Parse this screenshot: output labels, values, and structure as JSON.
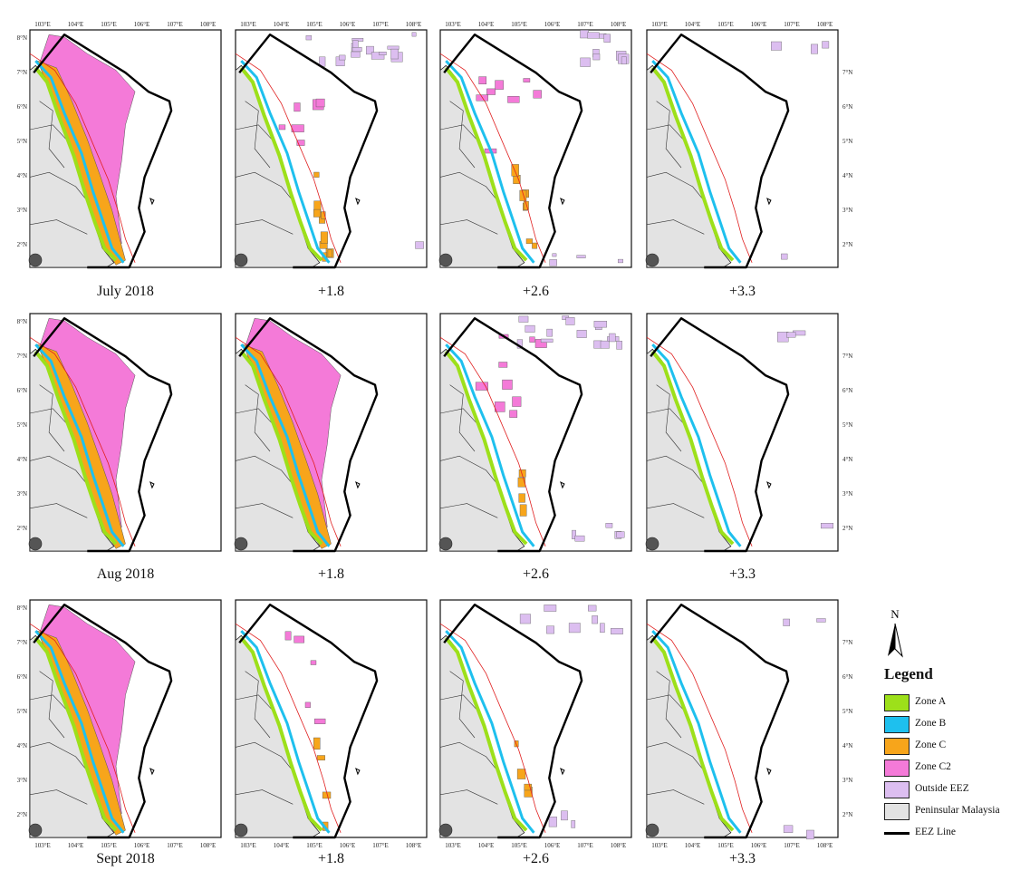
{
  "colors": {
    "zoneA": "#9de01a",
    "zoneB": "#1ec0ee",
    "zoneC": "#f7a51b",
    "zoneC2": "#f47ad8",
    "outside": "#dcbef0",
    "land": "#e3e3e3",
    "eez": "#000000",
    "redline": "#e02020",
    "blueline": "#3aa3e0"
  },
  "axis": {
    "lon_ticks": [
      "103°E",
      "104°E",
      "105°E",
      "106°E",
      "107°E",
      "108°E"
    ],
    "lat_ticks": [
      "2°N",
      "3°N",
      "4°N",
      "5°N",
      "6°N",
      "7°N",
      "8°N"
    ]
  },
  "panels": [
    {
      "caption": "July 2018",
      "coverage": {
        "C2": 1.0,
        "C": 1.0,
        "outside": 0.0
      }
    },
    {
      "caption": "+1.8",
      "coverage": {
        "C2": 0.05,
        "C": 0.25,
        "outside": 0.5
      }
    },
    {
      "caption": "+2.6",
      "coverage": {
        "C2": 0.08,
        "C": 0.2,
        "outside": 0.4
      }
    },
    {
      "caption": "+3.3",
      "coverage": {
        "C2": 0.0,
        "C": 0.0,
        "outside": 0.05
      }
    },
    {
      "caption": "Aug 2018",
      "coverage": {
        "C2": 0.9,
        "C": 1.0,
        "outside": 0.0
      }
    },
    {
      "caption": "+1.8",
      "coverage": {
        "C2": 0.9,
        "C": 0.8,
        "outside": 0.0
      }
    },
    {
      "caption": "+2.6",
      "coverage": {
        "C2": 0.1,
        "C": 0.1,
        "outside": 0.6
      }
    },
    {
      "caption": "+3.3",
      "coverage": {
        "C2": 0.0,
        "C": 0.0,
        "outside": 0.05
      }
    },
    {
      "caption": "Sept 2018",
      "coverage": {
        "C2": 1.0,
        "C": 1.0,
        "outside": 0.0
      }
    },
    {
      "caption": "+1.8",
      "coverage": {
        "C2": 0.03,
        "C": 0.05,
        "outside": 0.0
      }
    },
    {
      "caption": "+2.6",
      "coverage": {
        "C2": 0.0,
        "C": 0.05,
        "outside": 0.3
      }
    },
    {
      "caption": "+3.3",
      "coverage": {
        "C2": 0.0,
        "C": 0.0,
        "outside": 0.05
      }
    }
  ],
  "legend": {
    "north_label": "N",
    "title": "Legend",
    "items": [
      {
        "key": "zoneA",
        "label": "Zone A",
        "kind": "fill"
      },
      {
        "key": "zoneB",
        "label": "Zone B",
        "kind": "fill"
      },
      {
        "key": "zoneC",
        "label": "Zone C",
        "kind": "fill"
      },
      {
        "key": "zoneC2",
        "label": "Zone C2",
        "kind": "fill"
      },
      {
        "key": "outside",
        "label": "Outside EEZ",
        "kind": "fill"
      },
      {
        "key": "land",
        "label": "Peninsular Malaysia",
        "kind": "fill"
      },
      {
        "key": "eez",
        "label": "EEZ Line",
        "kind": "line"
      }
    ]
  }
}
